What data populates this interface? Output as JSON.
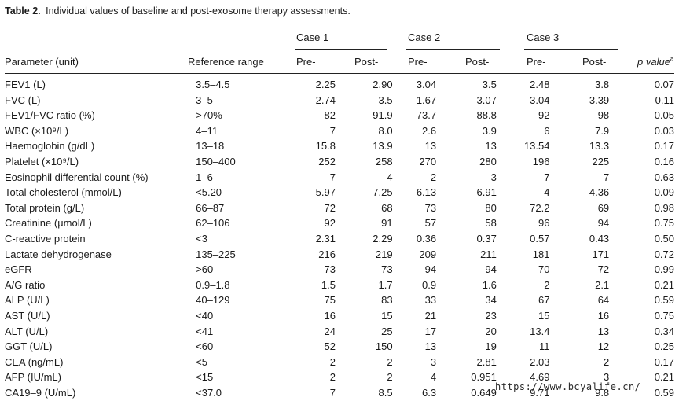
{
  "caption": {
    "label": "Table 2.",
    "text": "Individual values of baseline and post-exosome therapy assessments."
  },
  "header": {
    "case1": "Case 1",
    "case2": "Case 2",
    "case3": "Case 3",
    "parameter": "Parameter (unit)",
    "reference": "Reference range",
    "pre": "Pre-",
    "post": "Post-",
    "p_value": "p value",
    "p_value_sup": "a"
  },
  "rows": [
    {
      "param": "FEV1 (L)",
      "ref": "3.5–4.5",
      "c1pre": "2.25",
      "c1post": "2.90",
      "c2pre": "3.04",
      "c2post": "3.5",
      "c3pre": "2.48",
      "c3post": "3.8",
      "p": "0.07"
    },
    {
      "param": "FVC (L)",
      "ref": "3–5",
      "c1pre": "2.74",
      "c1post": "3.5",
      "c2pre": "1.67",
      "c2post": "3.07",
      "c3pre": "3.04",
      "c3post": "3.39",
      "p": "0.11"
    },
    {
      "param": "FEV1/FVC ratio (%)",
      "ref": ">70%",
      "c1pre": "82",
      "c1post": "91.9",
      "c2pre": "73.7",
      "c2post": "88.8",
      "c3pre": "92",
      "c3post": "98",
      "p": "0.05"
    },
    {
      "param": "WBC (×10⁹/L)",
      "ref": "4–11",
      "c1pre": "7",
      "c1post": "8.0",
      "c2pre": "2.6",
      "c2post": "3.9",
      "c3pre": "6",
      "c3post": "7.9",
      "p": "0.03"
    },
    {
      "param": "Haemoglobin (g/dL)",
      "ref": "13–18",
      "c1pre": "15.8",
      "c1post": "13.9",
      "c2pre": "13",
      "c2post": "13",
      "c3pre": "13.54",
      "c3post": "13.3",
      "p": "0.17"
    },
    {
      "param": "Platelet (×10⁹/L)",
      "ref": "150–400",
      "c1pre": "252",
      "c1post": "258",
      "c2pre": "270",
      "c2post": "280",
      "c3pre": "196",
      "c3post": "225",
      "p": "0.16"
    },
    {
      "param": "Eosinophil differential count (%)",
      "ref": "1–6",
      "c1pre": "7",
      "c1post": "4",
      "c2pre": "2",
      "c2post": "3",
      "c3pre": "7",
      "c3post": "7",
      "p": "0.63"
    },
    {
      "param": "Total cholesterol (mmol/L)",
      "ref": "<5.20",
      "c1pre": "5.97",
      "c1post": "7.25",
      "c2pre": "6.13",
      "c2post": "6.91",
      "c3pre": "4",
      "c3post": "4.36",
      "p": "0.09"
    },
    {
      "param": "Total protein (g/L)",
      "ref": "66–87",
      "c1pre": "72",
      "c1post": "68",
      "c2pre": "73",
      "c2post": "80",
      "c3pre": "72.2",
      "c3post": "69",
      "p": "0.98"
    },
    {
      "param": "Creatinine (µmol/L)",
      "ref": "62–106",
      "c1pre": "92",
      "c1post": "91",
      "c2pre": "57",
      "c2post": "58",
      "c3pre": "96",
      "c3post": "94",
      "p": "0.75"
    },
    {
      "param": "C-reactive protein",
      "ref": "<3",
      "c1pre": "2.31",
      "c1post": "2.29",
      "c2pre": "0.36",
      "c2post": "0.37",
      "c3pre": "0.57",
      "c3post": "0.43",
      "p": "0.50"
    },
    {
      "param": "Lactate dehydrogenase",
      "ref": "135–225",
      "c1pre": "216",
      "c1post": "219",
      "c2pre": "209",
      "c2post": "211",
      "c3pre": "181",
      "c3post": "171",
      "p": "0.72"
    },
    {
      "param": "eGFR",
      "ref": ">60",
      "c1pre": "73",
      "c1post": "73",
      "c2pre": "94",
      "c2post": "94",
      "c3pre": "70",
      "c3post": "72",
      "p": "0.99"
    },
    {
      "param": "A/G ratio",
      "ref": "0.9–1.8",
      "c1pre": "1.5",
      "c1post": "1.7",
      "c2pre": "0.9",
      "c2post": "1.6",
      "c3pre": "2",
      "c3post": "2.1",
      "p": "0.21"
    },
    {
      "param": "ALP (U/L)",
      "ref": "40–129",
      "c1pre": "75",
      "c1post": "83",
      "c2pre": "33",
      "c2post": "34",
      "c3pre": "67",
      "c3post": "64",
      "p": "0.59"
    },
    {
      "param": "AST (U/L)",
      "ref": "<40",
      "c1pre": "16",
      "c1post": "15",
      "c2pre": "21",
      "c2post": "23",
      "c3pre": "15",
      "c3post": "16",
      "p": "0.75"
    },
    {
      "param": "ALT (U/L)",
      "ref": "<41",
      "c1pre": "24",
      "c1post": "25",
      "c2pre": "17",
      "c2post": "20",
      "c3pre": "13.4",
      "c3post": "13",
      "p": "0.34"
    },
    {
      "param": "GGT (U/L)",
      "ref": "<60",
      "c1pre": "52",
      "c1post": "150",
      "c2pre": "13",
      "c2post": "19",
      "c3pre": "11",
      "c3post": "12",
      "p": "0.25"
    },
    {
      "param": "CEA (ng/mL)",
      "ref": "<5",
      "c1pre": "2",
      "c1post": "2",
      "c2pre": "3",
      "c2post": "2.81",
      "c3pre": "2.03",
      "c3post": "2",
      "p": "0.17"
    },
    {
      "param": "AFP (IU/mL)",
      "ref": "<15",
      "c1pre": "2",
      "c1post": "2",
      "c2pre": "4",
      "c2post": "0.951",
      "c3pre": "4.69",
      "c3post": "3",
      "p": "0.21"
    },
    {
      "param": "CA19–9 (U/mL)",
      "ref": "<37.0",
      "c1pre": "7",
      "c1post": "8.5",
      "c2pre": "6.3",
      "c2post": "0.649",
      "c3pre": "9.71",
      "c3post": "9.8",
      "p": "0.59"
    }
  ],
  "watermark": "https://www.bcyalife.cn/"
}
